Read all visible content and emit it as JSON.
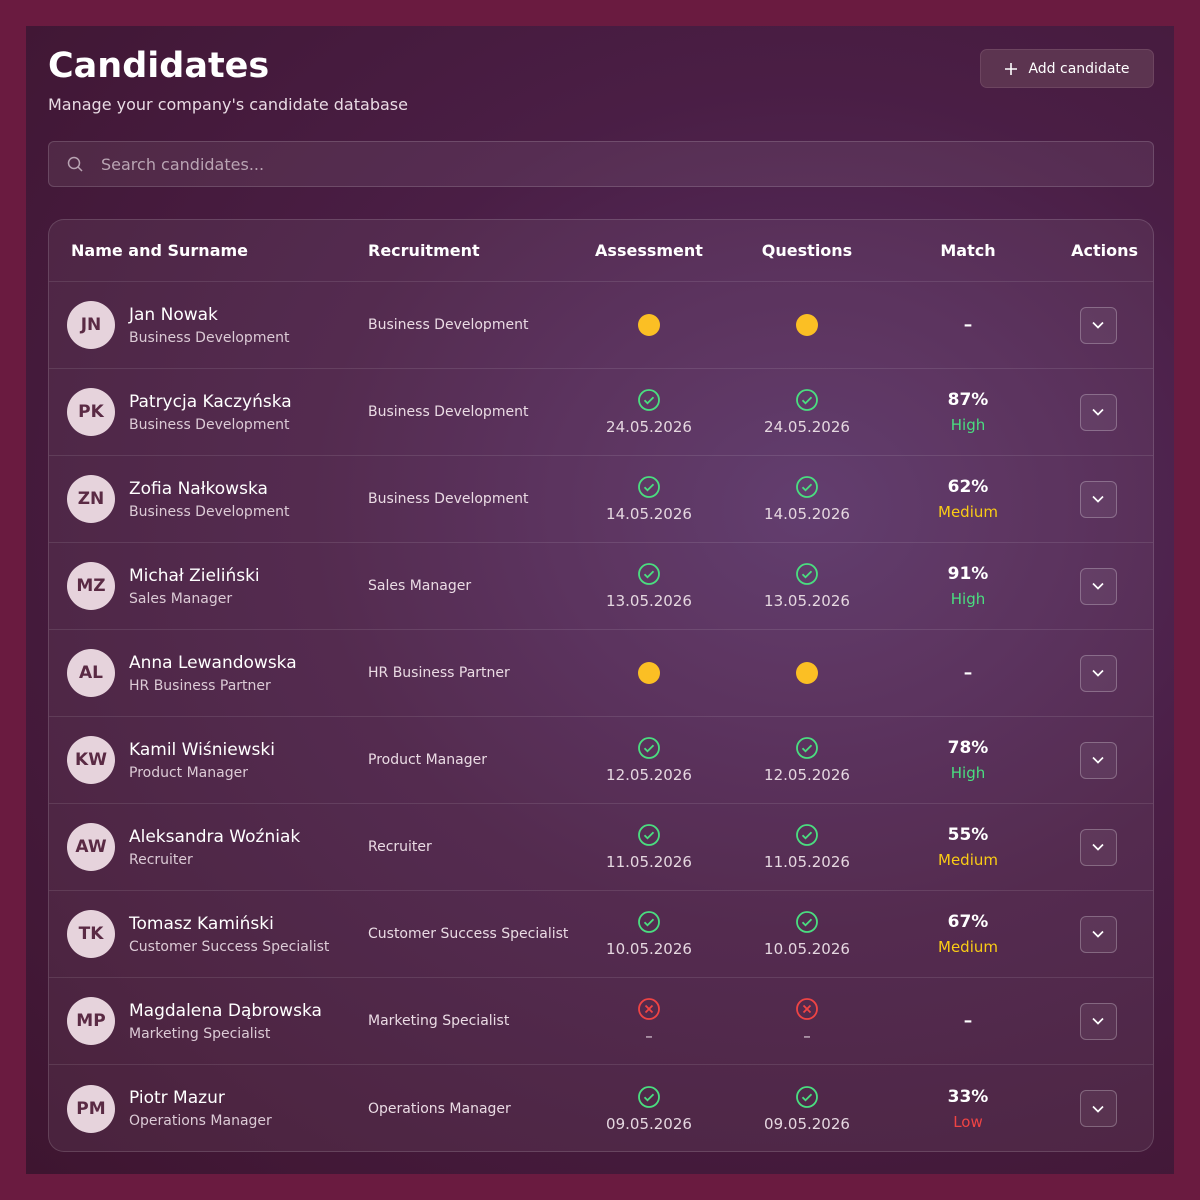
{
  "header": {
    "title": "Candidates",
    "subtitle": "Manage your company's candidate database",
    "add_button": "Add candidate"
  },
  "search": {
    "placeholder": "Search candidates..."
  },
  "table": {
    "columns": [
      "Name and Surname",
      "Recruitment",
      "Assessment",
      "Questions",
      "Match",
      "Actions"
    ],
    "rows": [
      {
        "initials": "JN",
        "name": "Jan Nowak",
        "role": "Business Development",
        "recruitment": "Business Development",
        "assessment": {
          "icon": "dot"
        },
        "questions": {
          "icon": "dot"
        },
        "match": {
          "value": "–"
        }
      },
      {
        "initials": "PK",
        "name": "Patrycja Kaczyńska",
        "role": "Business Development",
        "recruitment": "Business Development",
        "assessment": {
          "icon": "check",
          "date": "24.05.2026"
        },
        "questions": {
          "icon": "check",
          "date": "24.05.2026"
        },
        "match": {
          "value": "87%",
          "level": "High",
          "level_color": "#4ade80"
        }
      },
      {
        "initials": "ZN",
        "name": "Zofia Nałkowska",
        "role": "Business Development",
        "recruitment": "Business Development",
        "assessment": {
          "icon": "check",
          "date": "14.05.2026"
        },
        "questions": {
          "icon": "check",
          "date": "14.05.2026"
        },
        "match": {
          "value": "62%",
          "level": "Medium",
          "level_color": "#facc15"
        }
      },
      {
        "initials": "MZ",
        "name": "Michał Zieliński",
        "role": "Sales Manager",
        "recruitment": "Sales Manager",
        "assessment": {
          "icon": "check",
          "date": "13.05.2026"
        },
        "questions": {
          "icon": "check",
          "date": "13.05.2026"
        },
        "match": {
          "value": "91%",
          "level": "High",
          "level_color": "#4ade80"
        }
      },
      {
        "initials": "AL",
        "name": "Anna Lewandowska",
        "role": "HR Business Partner",
        "recruitment": "HR Business Partner",
        "assessment": {
          "icon": "dot"
        },
        "questions": {
          "icon": "dot"
        },
        "match": {
          "value": "–"
        }
      },
      {
        "initials": "KW",
        "name": "Kamil Wiśniewski",
        "role": "Product Manager",
        "recruitment": "Product Manager",
        "assessment": {
          "icon": "check",
          "date": "12.05.2026"
        },
        "questions": {
          "icon": "check",
          "date": "12.05.2026"
        },
        "match": {
          "value": "78%",
          "level": "High",
          "level_color": "#4ade80"
        }
      },
      {
        "initials": "AW",
        "name": "Aleksandra Woźniak",
        "role": "Recruiter",
        "recruitment": "Recruiter",
        "assessment": {
          "icon": "check",
          "date": "11.05.2026"
        },
        "questions": {
          "icon": "check",
          "date": "11.05.2026"
        },
        "match": {
          "value": "55%",
          "level": "Medium",
          "level_color": "#facc15"
        }
      },
      {
        "initials": "TK",
        "name": "Tomasz Kamiński",
        "role": "Customer Success Specialist",
        "recruitment": "Customer Success Specialist",
        "assessment": {
          "icon": "check",
          "date": "10.05.2026"
        },
        "questions": {
          "icon": "check",
          "date": "10.05.2026"
        },
        "match": {
          "value": "67%",
          "level": "Medium",
          "level_color": "#facc15"
        }
      },
      {
        "initials": "MP",
        "name": "Magdalena Dąbrowska",
        "role": "Marketing Specialist",
        "recruitment": "Marketing Specialist",
        "assessment": {
          "icon": "cross",
          "date": "–"
        },
        "questions": {
          "icon": "cross",
          "date": "–"
        },
        "match": {
          "value": "–"
        }
      },
      {
        "initials": "PM",
        "name": "Piotr Mazur",
        "role": "Operations Manager",
        "recruitment": "Operations Manager",
        "assessment": {
          "icon": "check",
          "date": "09.05.2026"
        },
        "questions": {
          "icon": "check",
          "date": "09.05.2026"
        },
        "match": {
          "value": "33%",
          "level": "Low",
          "level_color": "#ef4444"
        }
      }
    ]
  }
}
